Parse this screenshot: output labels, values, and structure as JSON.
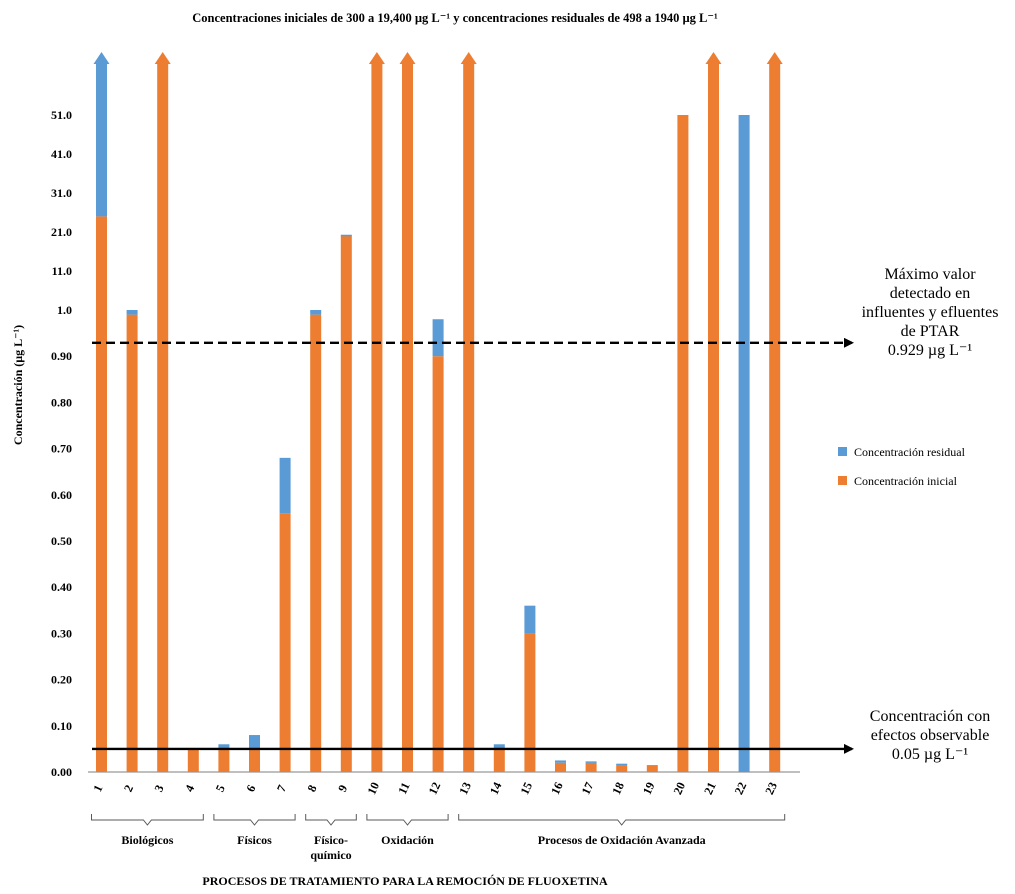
{
  "chart_data": {
    "type": "bar",
    "stacked": true,
    "title": "Concentraciones iniciales de 300 a 19,400 µg L⁻¹ y concentraciones residuales de 498 a 1940 µg L⁻¹",
    "xlabel": "PROCESOS DE TRATAMIENTO PARA LA REMOCIÓN DE FLUOXETINA",
    "ylabel": "Concentración (µg L⁻¹)",
    "y_scale": "broken: linear 0.00–1.0 below the break, linear 1.0–51.0 above",
    "ylim": [
      0,
      51.0
    ],
    "y_ticks": [
      "0.00",
      "0.10",
      "0.20",
      "0.30",
      "0.40",
      "0.50",
      "0.60",
      "0.70",
      "0.80",
      "0.90",
      "1.0",
      "11.0",
      "21.0",
      "31.0",
      "41.0",
      "51.0"
    ],
    "categories": [
      "1",
      "2",
      "3",
      "4",
      "5",
      "6",
      "7",
      "8",
      "9",
      "10",
      "11",
      "12",
      "13",
      "14",
      "15",
      "16",
      "17",
      "18",
      "19",
      "20",
      "21",
      "22",
      "23"
    ],
    "legend_position": "right",
    "series": [
      {
        "name": "Concentración inicial",
        "color": "#ED7D31",
        "values": [
          25,
          0.99,
          null,
          0.05,
          0.05,
          0.05,
          0.56,
          0.99,
          20,
          null,
          null,
          0.9,
          null,
          0.05,
          0.3,
          0.02,
          0.02,
          0.015,
          0.015,
          51.0,
          null,
          0,
          null
        ]
      },
      {
        "name": "Concentración residual",
        "color": "#5B9BD5",
        "values": [
          null,
          0.01,
          0,
          0,
          0.01,
          0.03,
          0.12,
          0.01,
          0.3,
          0,
          0,
          0.08,
          0,
          0.01,
          0.06,
          0.005,
          0.003,
          0.003,
          0,
          0,
          0,
          51.0,
          0
        ]
      }
    ],
    "off_scale_arrows": {
      "initial_above_51": [
        "3",
        "10",
        "11",
        "13",
        "21",
        "23"
      ],
      "residual_above_51": [
        "1"
      ]
    },
    "reference_lines": [
      {
        "name": "maximo",
        "value": 0.929,
        "style": "dashed",
        "label_lines": [
          "Máximo valor",
          "detectado en",
          "influentes y efluentes",
          "de PTAR",
          "0.929 µg L⁻¹"
        ]
      },
      {
        "name": "efectos",
        "value": 0.05,
        "style": "solid",
        "label_lines": [
          "Concentración con",
          "efectos observable",
          "0.05 µg L⁻¹"
        ]
      }
    ],
    "groups": [
      {
        "label_lines": [
          "Biológicos"
        ],
        "from": "1",
        "to": "4"
      },
      {
        "label_lines": [
          "Físicos"
        ],
        "from": "5",
        "to": "7"
      },
      {
        "label_lines": [
          "Físico-",
          "químico"
        ],
        "from": "8",
        "to": "9"
      },
      {
        "label_lines": [
          "Oxidación"
        ],
        "from": "10",
        "to": "12"
      },
      {
        "label_lines": [
          "Procesos de Oxidación Avanzada"
        ],
        "from": "13",
        "to": "23"
      }
    ]
  }
}
